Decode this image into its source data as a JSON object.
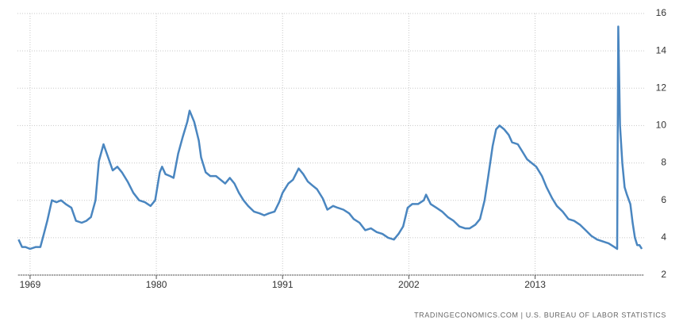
{
  "chart_data": {
    "type": "line",
    "source": "TRADINGECONOMICS.COM  |  U.S. BUREAU OF LABOR STATISTICS",
    "color": "#4a86c0",
    "grid": true,
    "x": [
      1968.0,
      1968.3,
      1968.6,
      1969.0,
      1969.5,
      1969.9,
      1970.2,
      1970.5,
      1970.9,
      1971.3,
      1971.7,
      1972.1,
      1972.6,
      1973.0,
      1973.5,
      1973.9,
      1974.3,
      1974.7,
      1975.0,
      1975.4,
      1975.8,
      1976.2,
      1976.6,
      1977.0,
      1977.5,
      1978.0,
      1978.5,
      1979.0,
      1979.5,
      1979.9,
      1980.3,
      1980.5,
      1980.8,
      1981.2,
      1981.5,
      1981.9,
      1982.3,
      1982.7,
      1982.9,
      1983.3,
      1983.7,
      1983.9,
      1984.3,
      1984.7,
      1985.2,
      1985.6,
      1986.0,
      1986.4,
      1986.8,
      1987.2,
      1987.6,
      1988.0,
      1988.5,
      1989.0,
      1989.4,
      1989.8,
      1990.3,
      1990.7,
      1991.0,
      1991.5,
      1991.9,
      1992.4,
      1992.8,
      1993.2,
      1993.6,
      1994.0,
      1994.5,
      1994.9,
      1995.4,
      1995.8,
      1996.3,
      1996.8,
      1997.2,
      1997.7,
      1998.2,
      1998.7,
      1999.2,
      1999.7,
      2000.2,
      2000.7,
      2001.1,
      2001.5,
      2001.9,
      2002.3,
      2002.8,
      2003.3,
      2003.5,
      2003.9,
      2004.4,
      2004.9,
      2005.4,
      2005.9,
      2006.4,
      2006.9,
      2007.3,
      2007.8,
      2008.2,
      2008.6,
      2008.9,
      2009.3,
      2009.6,
      2009.9,
      2010.3,
      2010.7,
      2011.0,
      2011.5,
      2011.9,
      2012.3,
      2012.7,
      2013.1,
      2013.6,
      2014.0,
      2014.5,
      2014.9,
      2015.4,
      2015.9,
      2016.4,
      2016.9,
      2017.4,
      2017.9,
      2018.4,
      2018.9,
      2019.4,
      2019.9,
      2020.15,
      2020.25,
      2020.4,
      2020.6,
      2020.8,
      2021.0,
      2021.3,
      2021.5,
      2021.7,
      2021.9,
      2022.1,
      2022.3
    ],
    "values": [
      3.9,
      3.5,
      3.5,
      3.4,
      3.5,
      3.5,
      4.2,
      4.9,
      6.0,
      5.9,
      6.0,
      5.8,
      5.6,
      4.9,
      4.8,
      4.9,
      5.1,
      6.0,
      8.1,
      9.0,
      8.3,
      7.6,
      7.8,
      7.5,
      7.0,
      6.4,
      6.0,
      5.9,
      5.7,
      6.0,
      7.5,
      7.8,
      7.4,
      7.3,
      7.2,
      8.5,
      9.4,
      10.2,
      10.8,
      10.2,
      9.2,
      8.3,
      7.5,
      7.3,
      7.3,
      7.1,
      6.9,
      7.2,
      6.9,
      6.4,
      6.0,
      5.7,
      5.4,
      5.3,
      5.2,
      5.3,
      5.4,
      5.9,
      6.4,
      6.9,
      7.1,
      7.7,
      7.4,
      7.0,
      6.8,
      6.6,
      6.1,
      5.5,
      5.7,
      5.6,
      5.5,
      5.3,
      5.0,
      4.8,
      4.4,
      4.5,
      4.3,
      4.2,
      4.0,
      3.9,
      4.2,
      4.6,
      5.6,
      5.8,
      5.8,
      6.0,
      6.3,
      5.8,
      5.6,
      5.4,
      5.1,
      4.9,
      4.6,
      4.5,
      4.5,
      4.7,
      5.0,
      6.0,
      7.2,
      8.9,
      9.8,
      10.0,
      9.8,
      9.5,
      9.1,
      9.0,
      8.6,
      8.2,
      8.0,
      7.8,
      7.3,
      6.7,
      6.1,
      5.7,
      5.4,
      5.0,
      4.9,
      4.7,
      4.4,
      4.1,
      3.9,
      3.8,
      3.7,
      3.5,
      3.4,
      15.3,
      10.0,
      8.0,
      6.7,
      6.3,
      5.8,
      4.8,
      4.0,
      3.6,
      3.6,
      3.4
    ],
    "xlim": [
      1967.9,
      2022.5
    ],
    "xticks": [
      1969,
      1980,
      1991,
      2002,
      2013
    ],
    "ylim": [
      2,
      16
    ],
    "yticks": [
      2,
      4,
      6,
      8,
      10,
      12,
      14,
      16
    ]
  }
}
